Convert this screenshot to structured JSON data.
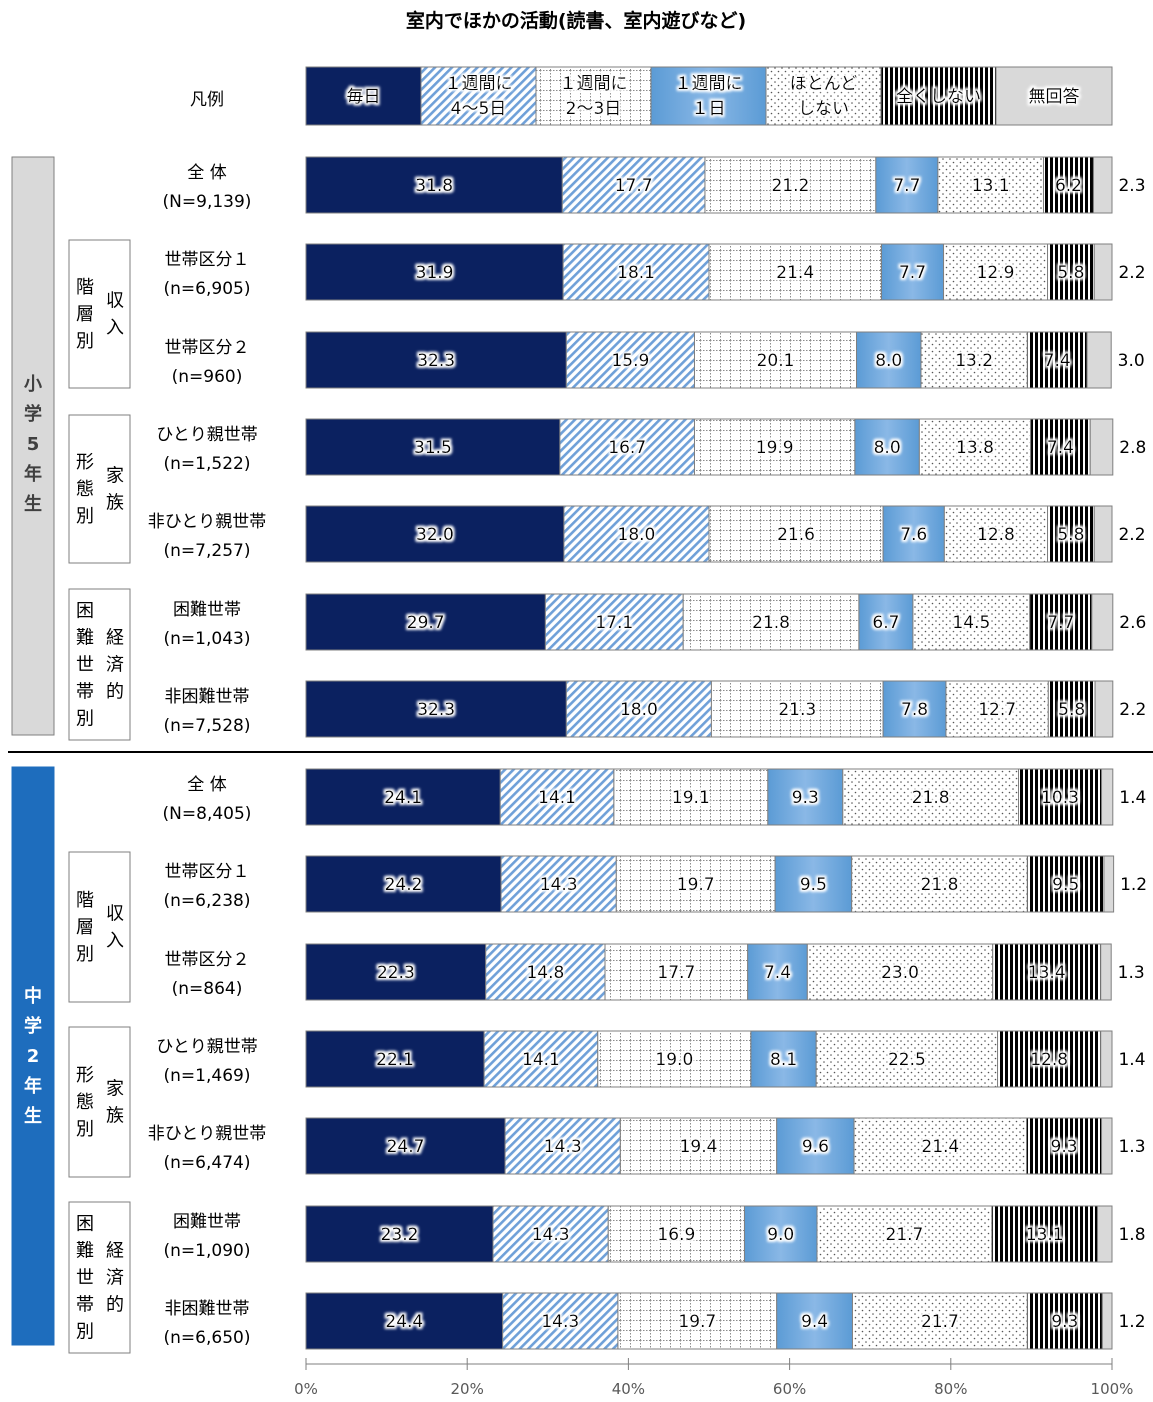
{
  "chart_data": {
    "type": "bar",
    "stacked": true,
    "orientation": "horizontal",
    "title": "室内でほかの活動(読書、室内遊びなど)",
    "legend_label": "凡例",
    "legend_position": "top",
    "x_ticks": [
      "0%",
      "20%",
      "40%",
      "60%",
      "80%",
      "100%"
    ],
    "xlim": [
      0,
      100
    ],
    "colors": {
      "毎日": "#0b2160",
      "1週間に4〜5日": "#6fa0d8",
      "1週間に2〜3日": "#9a9a9a",
      "1週間に1日": "#5b9bd5",
      "ほとんどしない": "#7f7f7f",
      "全くしない": "#000000",
      "無回答": "#d9d9d9"
    },
    "series": [
      {
        "name": "毎日",
        "legend_lines": [
          "毎日"
        ]
      },
      {
        "name": "1週間に4〜5日",
        "legend_lines": [
          "１週間に",
          "4～5日"
        ]
      },
      {
        "name": "1週間に2〜3日",
        "legend_lines": [
          "１週間に",
          "2～3日"
        ]
      },
      {
        "name": "1週間に1日",
        "legend_lines": [
          "１週間に",
          "１日"
        ]
      },
      {
        "name": "ほとんどしない",
        "legend_lines": [
          "ほとんど",
          "しない"
        ]
      },
      {
        "name": "全くしない",
        "legend_lines": [
          "全くしない"
        ]
      },
      {
        "name": "無回答",
        "legend_lines": [
          "無回答"
        ]
      }
    ],
    "groups": [
      {
        "label_chars": [
          "小",
          "学",
          "5",
          "年",
          "生"
        ],
        "rows": [
          {
            "label": "全 体",
            "n": "(N=9,139)",
            "values": [
              31.8,
              17.7,
              21.2,
              7.7,
              13.1,
              6.2,
              2.3
            ],
            "labels": [
              "31.8",
              "17.7",
              "21.2",
              "7.7",
              "13.1",
              "6.2",
              "2.3"
            ]
          },
          {
            "label": "世帯区分１",
            "n": "(n=6,905)",
            "values": [
              31.9,
              18.1,
              21.4,
              7.7,
              12.9,
              5.8,
              2.2
            ],
            "labels": [
              "31.9",
              "18.1",
              "21.4",
              "7.7",
              "12.9",
              "5.8",
              "2.2"
            ]
          },
          {
            "label": "世帯区分２",
            "n": "(n=960)",
            "values": [
              32.3,
              15.9,
              20.1,
              8.0,
              13.2,
              7.4,
              3.0
            ],
            "labels": [
              "32.3",
              "15.9",
              "20.1",
              "8.0",
              "13.2",
              "7.4",
              "3.0"
            ]
          },
          {
            "label": "ひとり親世帯",
            "n": "(n=1,522)",
            "values": [
              31.5,
              16.7,
              19.9,
              8.0,
              13.8,
              7.4,
              2.8
            ],
            "labels": [
              "31.5",
              "16.7",
              "19.9",
              "8.0",
              "13.8",
              "7.4",
              "2.8"
            ]
          },
          {
            "label": "非ひとり親世帯",
            "n": "(n=7,257)",
            "values": [
              32.0,
              18.0,
              21.6,
              7.6,
              12.8,
              5.8,
              2.2
            ],
            "labels": [
              "32.0",
              "18.0",
              "21.6",
              "7.6",
              "12.8",
              "5.8",
              "2.2"
            ]
          },
          {
            "label": "困難世帯",
            "n": "(n=1,043)",
            "values": [
              29.7,
              17.1,
              21.8,
              6.7,
              14.5,
              7.7,
              2.6
            ],
            "labels": [
              "29.7",
              "17.1",
              "21.8",
              "6.7",
              "14.5",
              "7.7",
              "2.6"
            ]
          },
          {
            "label": "非困難世帯",
            "n": "(n=7,528)",
            "values": [
              32.3,
              18.0,
              21.3,
              7.8,
              12.7,
              5.8,
              2.2
            ],
            "labels": [
              "32.3",
              "18.0",
              "21.3",
              "7.8",
              "12.7",
              "5.8",
              "2.2"
            ]
          }
        ]
      },
      {
        "label_chars": [
          "中",
          "学",
          "2",
          "年",
          "生"
        ],
        "rows": [
          {
            "label": "全 体",
            "n": "(N=8,405)",
            "values": [
              24.1,
              14.1,
              19.1,
              9.3,
              21.8,
              10.3,
              1.4
            ],
            "labels": [
              "24.1",
              "14.1",
              "19.1",
              "9.3",
              "21.8",
              "10.3",
              "1.4"
            ]
          },
          {
            "label": "世帯区分１",
            "n": "(n=6,238)",
            "values": [
              24.2,
              14.3,
              19.7,
              9.5,
              21.8,
              9.5,
              1.2
            ],
            "labels": [
              "24.2",
              "14.3",
              "19.7",
              "9.5",
              "21.8",
              "9.5",
              "1.2"
            ]
          },
          {
            "label": "世帯区分２",
            "n": "(n=864)",
            "values": [
              22.3,
              14.8,
              17.7,
              7.4,
              23.0,
              13.4,
              1.3
            ],
            "labels": [
              "22.3",
              "14.8",
              "17.7",
              "7.4",
              "23.0",
              "13.4",
              "1.3"
            ]
          },
          {
            "label": "ひとり親世帯",
            "n": "(n=1,469)",
            "values": [
              22.1,
              14.1,
              19.0,
              8.1,
              22.5,
              12.8,
              1.4
            ],
            "labels": [
              "22.1",
              "14.1",
              "19.0",
              "8.1",
              "22.5",
              "12.8",
              "1.4"
            ]
          },
          {
            "label": "非ひとり親世帯",
            "n": "(n=6,474)",
            "values": [
              24.7,
              14.3,
              19.4,
              9.6,
              21.4,
              9.3,
              1.3
            ],
            "labels": [
              "24.7",
              "14.3",
              "19.4",
              "9.6",
              "21.4",
              "9.3",
              "1.3"
            ]
          },
          {
            "label": "困難世帯",
            "n": "(n=1,090)",
            "values": [
              23.2,
              14.3,
              16.9,
              9.0,
              21.7,
              13.1,
              1.8
            ],
            "labels": [
              "23.2",
              "14.3",
              "16.9",
              "9.0",
              "21.7",
              "13.1",
              "1.8"
            ]
          },
          {
            "label": "非困難世帯",
            "n": "(n=6,650)",
            "values": [
              24.4,
              14.3,
              19.7,
              9.4,
              21.7,
              9.3,
              1.2
            ],
            "labels": [
              "24.4",
              "14.3",
              "19.7",
              "9.4",
              "21.7",
              "9.3",
              "1.2"
            ]
          }
        ]
      }
    ],
    "category_groups": [
      {
        "outer": [
          "階",
          "層",
          "別"
        ],
        "inner": [
          "収",
          "入"
        ],
        "span": [
          1,
          2
        ]
      },
      {
        "outer": [
          "形",
          "態",
          "別"
        ],
        "inner": [
          "家",
          "族"
        ],
        "span": [
          3,
          4
        ]
      },
      {
        "outer": [
          "困",
          "難",
          "世",
          "帯",
          "別"
        ],
        "inner": [
          "経",
          "済",
          "的"
        ],
        "span": [
          5,
          6
        ]
      }
    ]
  }
}
